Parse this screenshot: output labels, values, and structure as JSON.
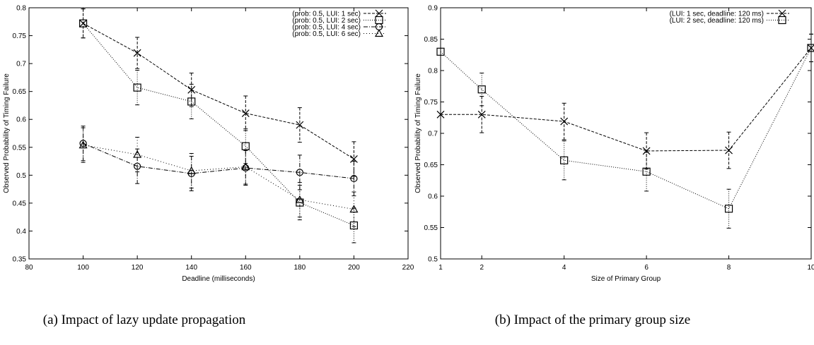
{
  "chart_data": [
    {
      "type": "line",
      "title": "",
      "caption": "(a) Impact of lazy update propagation",
      "xlabel": "Deadline (milliseconds)",
      "ylabel": "Observed Probability of Timing Failure",
      "xlim": [
        80,
        220
      ],
      "ylim": [
        0.35,
        0.8
      ],
      "xticks": [
        80,
        100,
        120,
        140,
        160,
        180,
        200,
        220
      ],
      "yticks": [
        0.35,
        0.4,
        0.45,
        0.5,
        0.55,
        0.6,
        0.65,
        0.7,
        0.75,
        0.8
      ],
      "grid": false,
      "legend_position": "top-right",
      "series": [
        {
          "name": "(prob: 0.5, LUI: 1 sec)",
          "marker": "x",
          "dash": "4,2",
          "x": [
            100,
            120,
            140,
            160,
            180,
            200
          ],
          "y": [
            0.772,
            0.719,
            0.653,
            0.611,
            0.59,
            0.529
          ],
          "err": [
            0.026,
            0.028,
            0.03,
            0.031,
            0.031,
            0.031
          ]
        },
        {
          "name": "(prob: 0.5, LUI: 2 sec)",
          "marker": "square",
          "dash": "1,2",
          "x": [
            100,
            120,
            140,
            160,
            180,
            200
          ],
          "y": [
            0.772,
            0.657,
            0.632,
            0.552,
            0.451,
            0.41
          ],
          "err": [
            0.026,
            0.031,
            0.031,
            0.031,
            0.031,
            0.031
          ]
        },
        {
          "name": "(prob: 0.5, LUI: 4 sec)",
          "marker": "circle",
          "dash": "6,2,1,2",
          "x": [
            100,
            120,
            140,
            160,
            180,
            200
          ],
          "y": [
            0.557,
            0.516,
            0.503,
            0.513,
            0.505,
            0.494
          ],
          "err": [
            0.031,
            0.031,
            0.031,
            0.031,
            0.031,
            0.031
          ]
        },
        {
          "name": "(prob: 0.5, LUI: 6 sec)",
          "marker": "triangle",
          "dash": "1,3",
          "x": [
            100,
            120,
            140,
            160,
            180,
            200
          ],
          "y": [
            0.554,
            0.537,
            0.508,
            0.515,
            0.456,
            0.439
          ],
          "err": [
            0.031,
            0.031,
            0.031,
            0.031,
            0.031,
            0.031
          ]
        }
      ]
    },
    {
      "type": "line",
      "title": "",
      "caption": "(b) Impact of the primary group size",
      "xlabel": "Size of Primary Group",
      "ylabel": "Observed Probability of Timing Failure",
      "xlim": [
        1,
        10
      ],
      "ylim": [
        0.5,
        0.9
      ],
      "xticks": [
        1,
        2,
        4,
        6,
        8,
        10
      ],
      "yticks": [
        0.5,
        0.55,
        0.6,
        0.65,
        0.7,
        0.75,
        0.8,
        0.85,
        0.9
      ],
      "grid": false,
      "legend_position": "top-right",
      "series": [
        {
          "name": "(LUI: 1 sec, deadline: 120 ms)",
          "marker": "x",
          "dash": "4,2",
          "x": [
            1,
            2,
            4,
            6,
            8,
            10
          ],
          "y": [
            0.73,
            0.73,
            0.719,
            0.672,
            0.673,
            0.836
          ],
          "err": [
            0.0,
            0.029,
            0.029,
            0.029,
            0.029,
            0.022
          ]
        },
        {
          "name": "(LUI: 2 sec, deadline: 120 ms)",
          "marker": "square",
          "dash": "1,2",
          "x": [
            1,
            2,
            4,
            6,
            8,
            10
          ],
          "y": [
            0.83,
            0.77,
            0.657,
            0.639,
            0.58,
            0.836
          ],
          "err": [
            0.0,
            0.026,
            0.031,
            0.031,
            0.031,
            0.022
          ]
        }
      ]
    }
  ]
}
